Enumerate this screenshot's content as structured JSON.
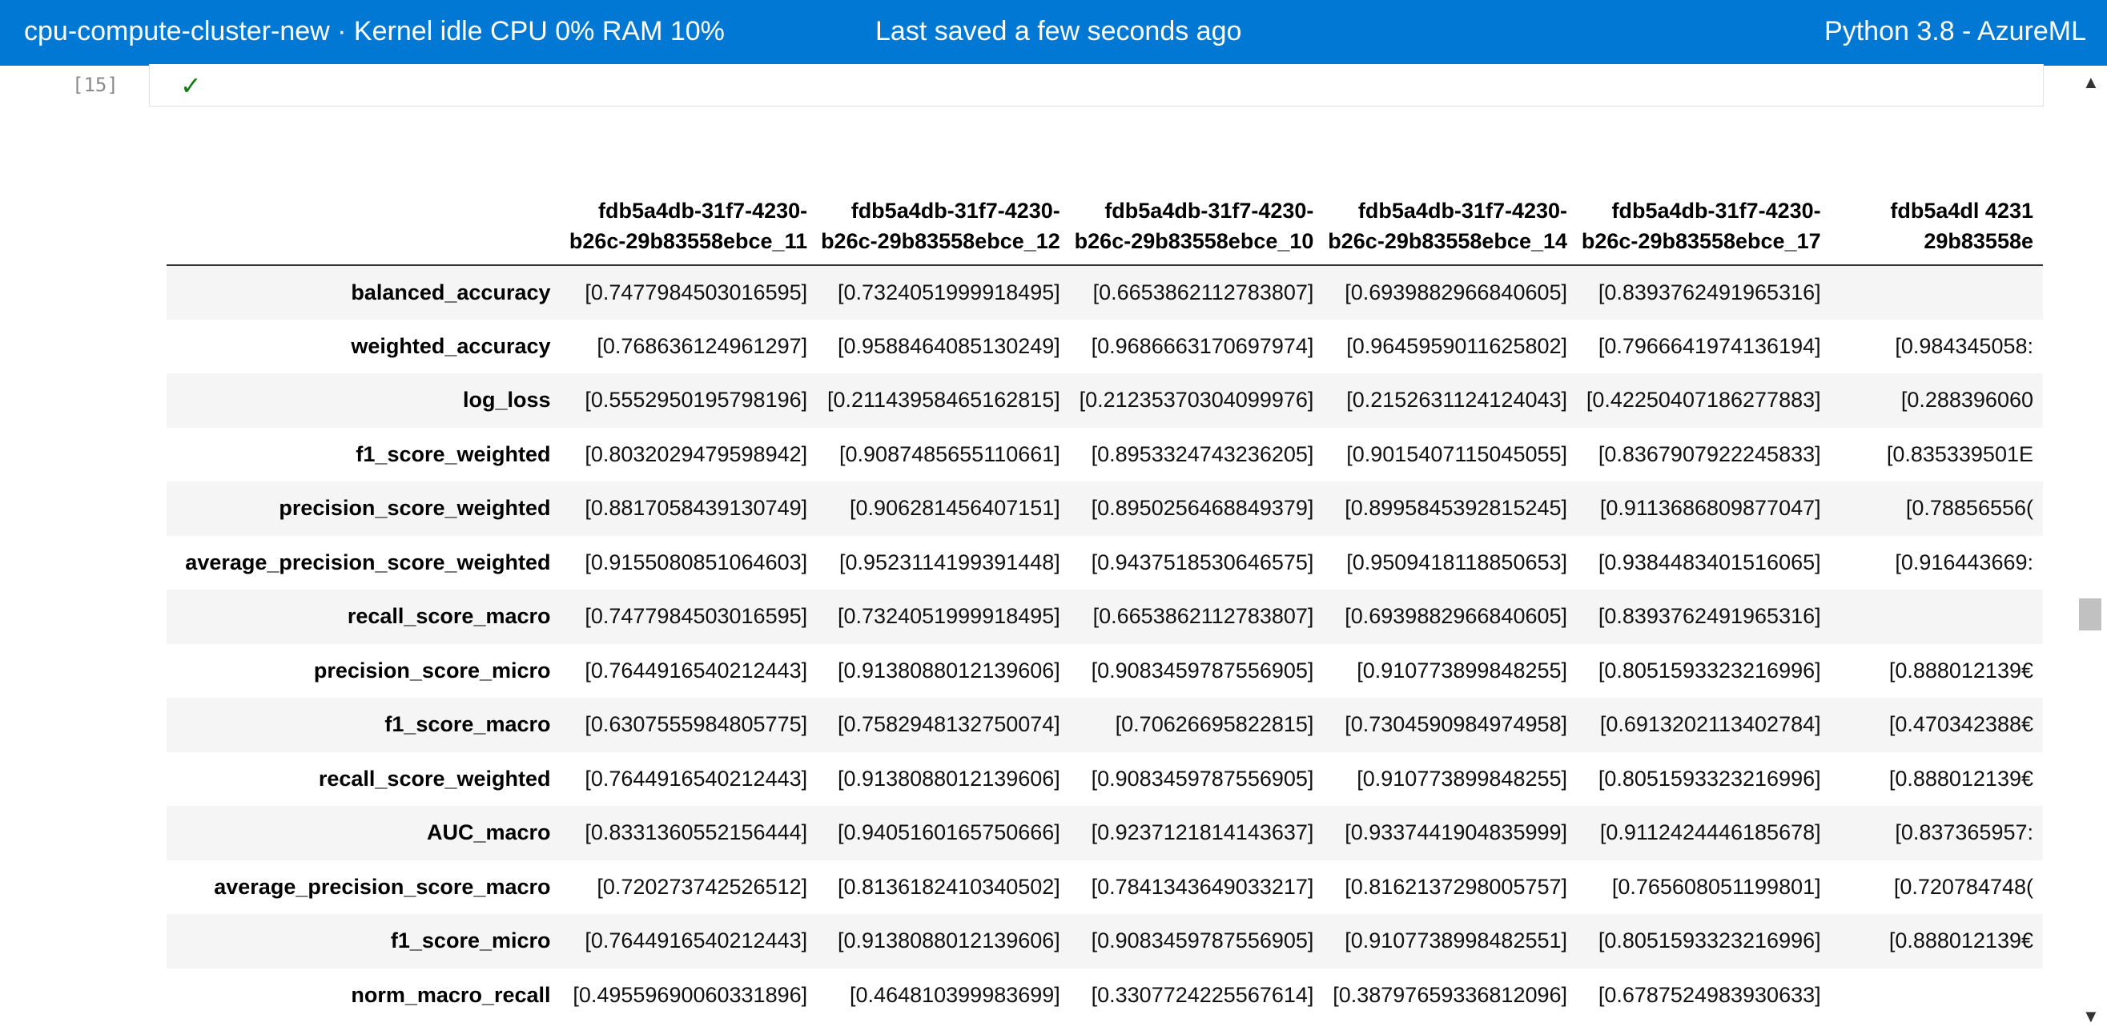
{
  "topbar": {
    "compute": "cpu-compute-cluster-new · Kernel idle  CPU  0%  RAM 10%",
    "saved": "Last saved a few seconds ago",
    "kernel": "Python 3.8 - AzureML"
  },
  "cell": {
    "prompt": "[15]",
    "status_icon": "checkmark-icon"
  },
  "colors": {
    "topbar": "#0078d4",
    "check": "#107c10",
    "row_stripe": "#f5f5f5"
  },
  "table": {
    "columns": [
      "fdb5a4db-31f7-4230-b26c-29b83558ebce_11",
      "fdb5a4db-31f7-4230-b26c-29b83558ebce_12",
      "fdb5a4db-31f7-4230-b26c-29b83558ebce_10",
      "fdb5a4db-31f7-4230-b26c-29b83558ebce_14",
      "fdb5a4db-31f7-4230-b26c-29b83558ebce_17",
      "fdb5a4dl 4231 29b83558e"
    ],
    "rows": [
      {
        "label": "balanced_accuracy",
        "values": [
          "[0.7477984503016595]",
          "[0.7324051999918495]",
          "[0.6653862112783807]",
          "[0.6939882966840605]",
          "[0.8393762491965316]",
          ""
        ]
      },
      {
        "label": "weighted_accuracy",
        "values": [
          "[0.768636124961297]",
          "[0.9588464085130249]",
          "[0.9686663170697974]",
          "[0.9645959011625802]",
          "[0.7966641974136194]",
          "[0.984345058:"
        ]
      },
      {
        "label": "log_loss",
        "values": [
          "[0.5552950195798196]",
          "[0.21143958465162815]",
          "[0.21235370304099976]",
          "[0.2152631124124043]",
          "[0.42250407186277883]",
          "[0.288396060"
        ]
      },
      {
        "label": "f1_score_weighted",
        "values": [
          "[0.8032029479598942]",
          "[0.9087485655110661]",
          "[0.8953324743236205]",
          "[0.9015407115045055]",
          "[0.8367907922245833]",
          "[0.835339501E"
        ]
      },
      {
        "label": "precision_score_weighted",
        "values": [
          "[0.8817058439130749]",
          "[0.906281456407151]",
          "[0.8950256468849379]",
          "[0.8995845392815245]",
          "[0.9113686809877047]",
          "[0.78856556("
        ]
      },
      {
        "label": "average_precision_score_weighted",
        "values": [
          "[0.9155080851064603]",
          "[0.9523114199391448]",
          "[0.9437518530646575]",
          "[0.9509418118850653]",
          "[0.9384483401516065]",
          "[0.916443669:"
        ]
      },
      {
        "label": "recall_score_macro",
        "values": [
          "[0.7477984503016595]",
          "[0.7324051999918495]",
          "[0.6653862112783807]",
          "[0.6939882966840605]",
          "[0.8393762491965316]",
          ""
        ]
      },
      {
        "label": "precision_score_micro",
        "values": [
          "[0.7644916540212443]",
          "[0.9138088012139606]",
          "[0.9083459787556905]",
          "[0.910773899848255]",
          "[0.8051593323216996]",
          "[0.888012139€"
        ]
      },
      {
        "label": "f1_score_macro",
        "values": [
          "[0.6307555984805775]",
          "[0.7582948132750074]",
          "[0.70626695822815]",
          "[0.7304590984974958]",
          "[0.6913202113402784]",
          "[0.470342388€"
        ]
      },
      {
        "label": "recall_score_weighted",
        "values": [
          "[0.7644916540212443]",
          "[0.9138088012139606]",
          "[0.9083459787556905]",
          "[0.910773899848255]",
          "[0.8051593323216996]",
          "[0.888012139€"
        ]
      },
      {
        "label": "AUC_macro",
        "values": [
          "[0.8331360552156444]",
          "[0.9405160165750666]",
          "[0.9237121814143637]",
          "[0.9337441904835999]",
          "[0.9112424446185678]",
          "[0.837365957:"
        ]
      },
      {
        "label": "average_precision_score_macro",
        "values": [
          "[0.720273742526512]",
          "[0.8136182410340502]",
          "[0.7841343649033217]",
          "[0.8162137298005757]",
          "[0.765608051199801]",
          "[0.720784748("
        ]
      },
      {
        "label": "f1_score_micro",
        "values": [
          "[0.7644916540212443]",
          "[0.9138088012139606]",
          "[0.9083459787556905]",
          "[0.9107738998482551]",
          "[0.8051593323216996]",
          "[0.888012139€"
        ]
      },
      {
        "label": "norm_macro_recall",
        "values": [
          "[0.49559690060331896]",
          "[0.464810399983699]",
          "[0.3307724225567614]",
          "[0.38797659336812096]",
          "[0.6787524983930633]",
          ""
        ]
      }
    ]
  },
  "scrollbar": {
    "up_icon": "chevron-up-icon",
    "down_icon": "chevron-down-icon"
  }
}
